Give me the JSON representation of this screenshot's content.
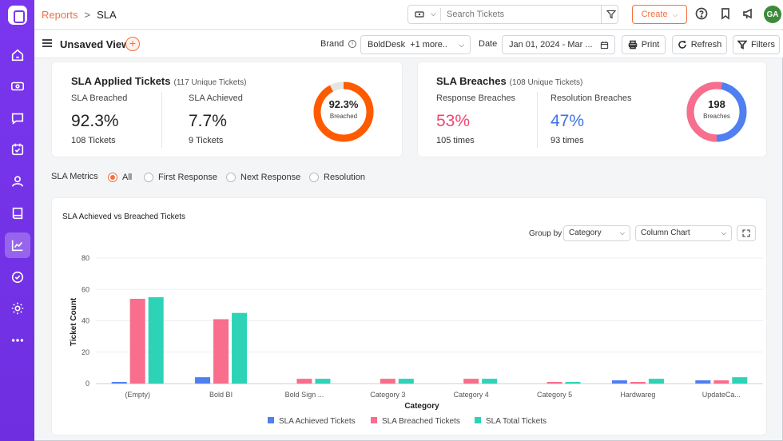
{
  "breadcrumb": {
    "root": "Reports",
    "current": "SLA"
  },
  "header": {
    "search_placeholder": "Search Tickets",
    "create_label": "Create",
    "avatar_initials": "GA"
  },
  "viewbar": {
    "view_name": "Unsaved View",
    "brand_label": "Brand",
    "brand_value": "BoldDesk  +1 more..",
    "date_label": "Date",
    "date_value": "Jan 01, 2024 - Mar ...",
    "print_label": "Print",
    "refresh_label": "Refresh",
    "filters_label": "Filters"
  },
  "sla_applied": {
    "title": "SLA Applied Tickets",
    "subtitle": "(117 Unique Tickets)",
    "breached_label": "SLA Breached",
    "breached_value": "92.3%",
    "breached_count": "108 Tickets",
    "achieved_label": "SLA Achieved",
    "achieved_value": "7.7%",
    "achieved_count": "9 Tickets",
    "donut_value": "92.3%",
    "donut_label": "Breached",
    "donut_fraction": 0.923
  },
  "sla_breaches": {
    "title": "SLA Breaches",
    "subtitle": "(108 Unique Tickets)",
    "response_label": "Response Breaches",
    "response_value": "53%",
    "response_count": "105 times",
    "resolution_label": "Resolution Breaches",
    "resolution_value": "47%",
    "resolution_count": "93 times",
    "donut_value": "198",
    "donut_label": "Breaches",
    "response_fraction": 0.53
  },
  "metrics": {
    "label": "SLA Metrics",
    "options": [
      "All",
      "First Response",
      "Next Response",
      "Resolution"
    ],
    "selected": "All"
  },
  "chart_panel": {
    "title": "SLA Achieved vs Breached Tickets",
    "groupby_label": "Group by",
    "groupby_value": "Category",
    "chart_type_value": "Column Chart"
  },
  "colors": {
    "accent": "#f2703f",
    "achieved": "#4f7ff0",
    "breached": "#f86e8c",
    "total": "#2ed3b7",
    "nav": "#7a36ee"
  },
  "chart_data": {
    "type": "bar",
    "title": "SLA Achieved vs Breached Tickets",
    "xlabel": "Category",
    "ylabel": "Ticket Count",
    "ylim": [
      0,
      80
    ],
    "yticks": [
      0,
      20,
      40,
      60,
      80
    ],
    "categories": [
      "(Empty)",
      "Bold BI",
      "Bold Sign ...",
      "Category 3",
      "Category 4",
      "Category 5",
      "Hardwareg",
      "UpdateCa..."
    ],
    "series": [
      {
        "name": "SLA Achieved Tickets",
        "values": [
          1,
          4,
          0,
          0,
          0,
          0,
          2,
          2
        ]
      },
      {
        "name": "SLA Breached Tickets",
        "values": [
          54,
          41,
          3,
          3,
          3,
          1,
          1,
          2
        ]
      },
      {
        "name": "SLA Total Tickets",
        "values": [
          55,
          45,
          3,
          3,
          3,
          1,
          3,
          4
        ]
      }
    ],
    "legend": "bottom-center"
  }
}
